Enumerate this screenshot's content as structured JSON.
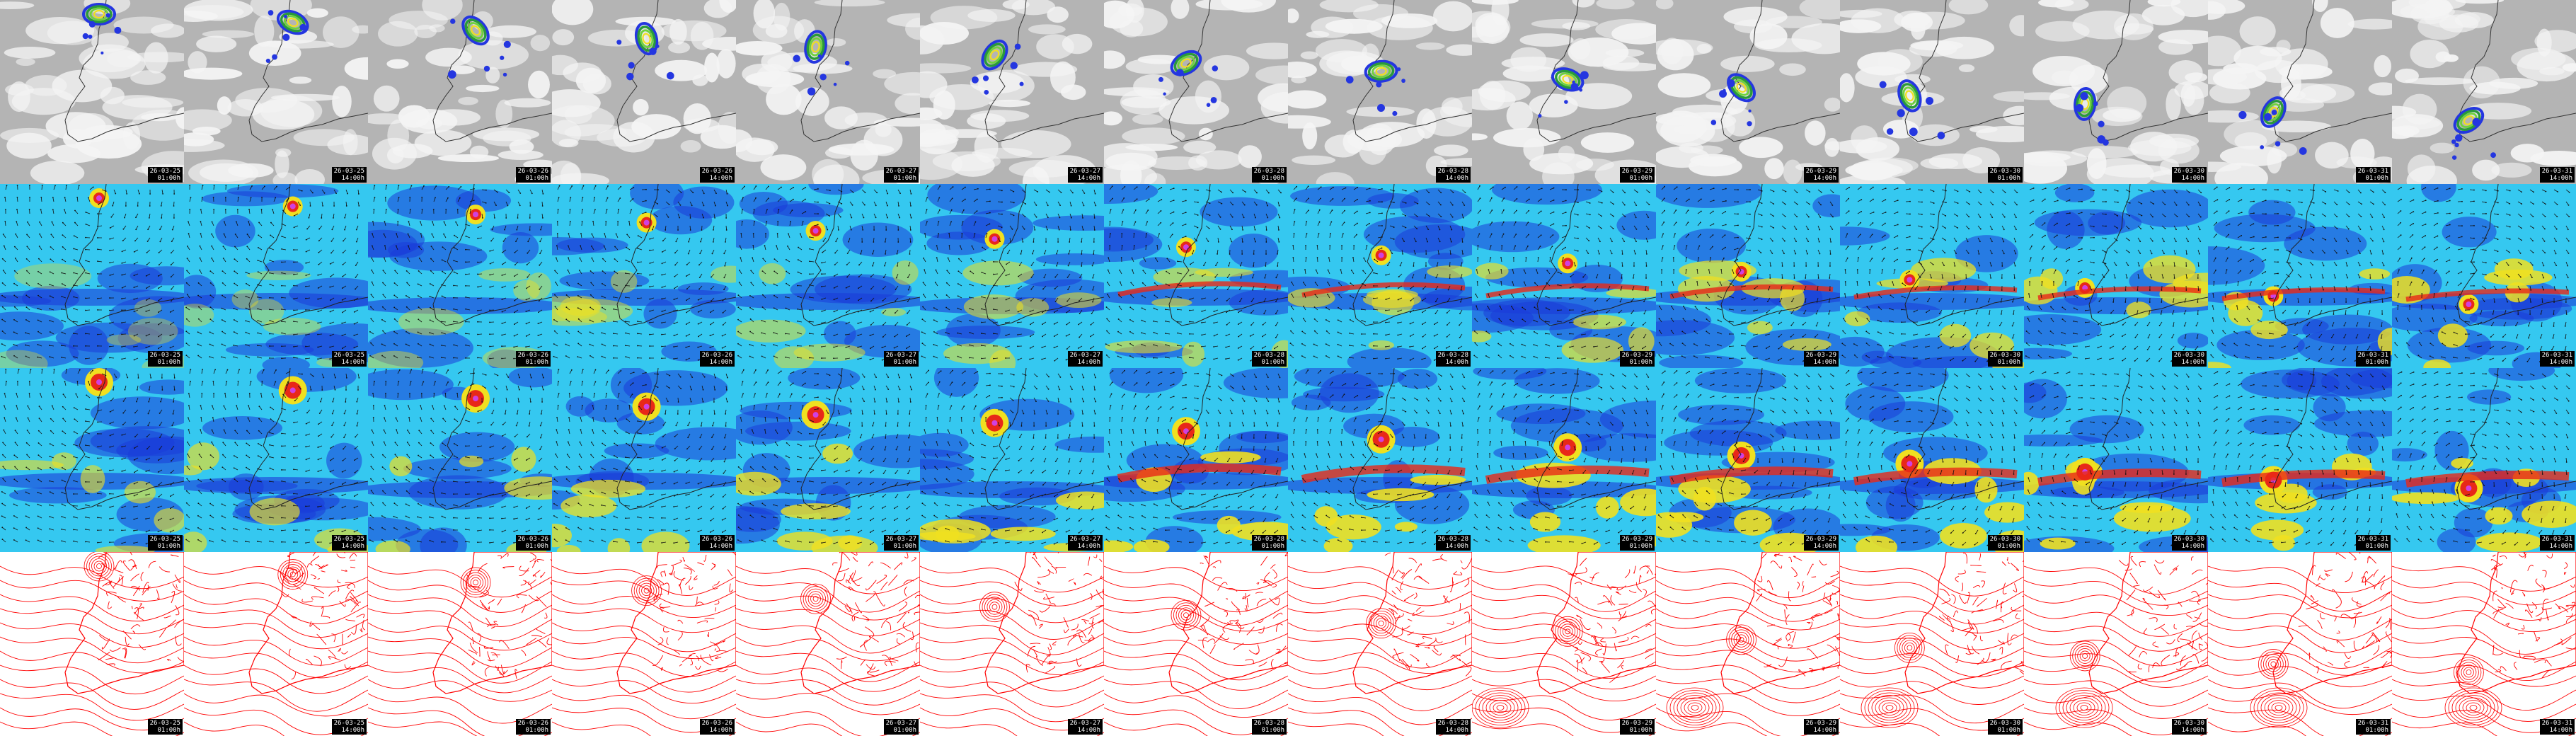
{
  "rows": [
    {
      "name": "cloud-precip"
    },
    {
      "name": "wind-upper"
    },
    {
      "name": "wind-surface"
    },
    {
      "name": "pressure-isobars"
    }
  ],
  "frames": [
    {
      "date": "26-03-25",
      "time": "01:00h"
    },
    {
      "date": "26-03-25",
      "time": "14:00h"
    },
    {
      "date": "26-03-26",
      "time": "01:00h"
    },
    {
      "date": "26-03-26",
      "time": "14:00h"
    },
    {
      "date": "26-03-27",
      "time": "01:00h"
    },
    {
      "date": "26-03-27",
      "time": "14:00h"
    },
    {
      "date": "26-03-28",
      "time": "01:00h"
    },
    {
      "date": "26-03-28",
      "time": "14:00h"
    },
    {
      "date": "26-03-29",
      "time": "01:00h"
    },
    {
      "date": "26-03-29",
      "time": "14:00h"
    },
    {
      "date": "26-03-30",
      "time": "01:00h"
    },
    {
      "date": "26-03-30",
      "time": "14:00h"
    },
    {
      "date": "26-03-31",
      "time": "01:00h"
    },
    {
      "date": "26-03-31",
      "time": "14:00h"
    }
  ],
  "colors": {
    "cloud_bg": "#b4b4b4",
    "wind_low": "#1a3cd8",
    "wind_mid": "#35c8f0",
    "wind_high": "#f0e020",
    "wind_peak": "#e82818",
    "isobar": "#ff0000",
    "stamp_bg": "#000000"
  }
}
